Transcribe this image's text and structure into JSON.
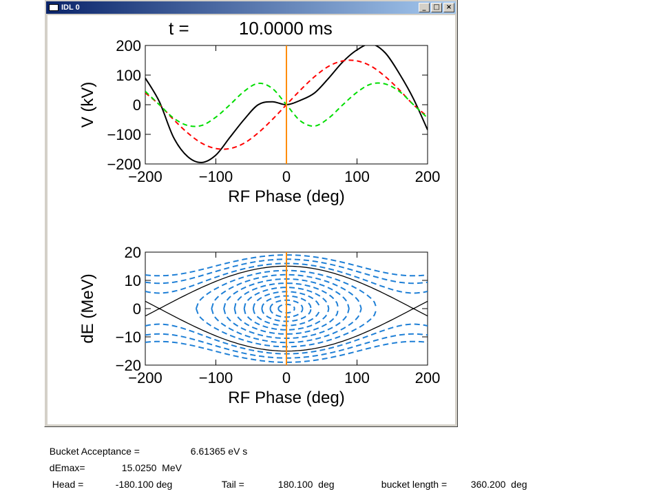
{
  "window": {
    "title": "IDL 0",
    "controls": {
      "minimize": "_",
      "maximize": "□",
      "close": "×"
    }
  },
  "plot_title": "t =          10.0000 ms",
  "info": {
    "acceptance_label": "Bucket Acceptance =",
    "acceptance_value": "6.61365 eV s",
    "demax_label": "dEmax=",
    "demax_value": "15.0250  MeV",
    "head_label": "Head =",
    "head_value": "-180.100 deg",
    "tail_label": "Tail =",
    "tail_value": "180.100  deg",
    "length_label": "bucket length =",
    "length_value": "360.200  deg"
  },
  "colors": {
    "line1": "#000000",
    "line2": "#ff0000",
    "line3": "#00dd00",
    "marker": "#ff8c00",
    "contours": "#1e7fd6",
    "separatrix": "#000000"
  },
  "chart_data": [
    {
      "type": "line",
      "xlabel": "RF Phase (deg)",
      "ylabel": "V (kV)",
      "xlim": [
        -200,
        200
      ],
      "ylim": [
        -200,
        200
      ],
      "xticks": [
        -200,
        -100,
        0,
        100,
        200
      ],
      "yticks": [
        -200,
        -100,
        0,
        100,
        200
      ],
      "vline_x": 0,
      "series": [
        {
          "color": "#000000",
          "style": "solid",
          "x": [
            -200,
            -180,
            -160,
            -140,
            -120,
            -100,
            -80,
            -60,
            -40,
            -20,
            0,
            20,
            40,
            60,
            80,
            100,
            120,
            140,
            160,
            180,
            200
          ],
          "y": [
            90,
            10,
            -110,
            -175,
            -195,
            -170,
            -110,
            -50,
            0,
            10,
            0,
            15,
            40,
            90,
            145,
            185,
            205,
            175,
            105,
            20,
            -85
          ]
        },
        {
          "color": "#ff0000",
          "style": "dashed",
          "x": [
            -200,
            -180,
            -160,
            -140,
            -120,
            -100,
            -80,
            -60,
            -40,
            -20,
            0,
            20,
            40,
            60,
            80,
            100,
            120,
            140,
            160,
            180,
            200
          ],
          "y": [
            40,
            0,
            -50,
            -95,
            -130,
            -148,
            -148,
            -130,
            -95,
            -50,
            0,
            50,
            95,
            130,
            148,
            148,
            130,
            95,
            50,
            0,
            -40
          ]
        },
        {
          "color": "#00dd00",
          "style": "dashed",
          "x": [
            -200,
            -180,
            -160,
            -140,
            -120,
            -100,
            -80,
            -60,
            -40,
            -20,
            0,
            20,
            40,
            60,
            80,
            100,
            120,
            140,
            160,
            180,
            200
          ],
          "y": [
            45,
            0,
            -45,
            -70,
            -70,
            -42,
            0,
            45,
            72,
            55,
            0,
            -55,
            -72,
            -45,
            0,
            42,
            70,
            70,
            45,
            0,
            -45
          ]
        }
      ]
    },
    {
      "type": "line",
      "xlabel": "RF Phase (deg)",
      "ylabel": "dE (MeV)",
      "xlim": [
        -200,
        200
      ],
      "ylim": [
        -20,
        20
      ],
      "xticks": [
        -200,
        -100,
        0,
        100,
        200
      ],
      "yticks": [
        -20,
        -10,
        0,
        10,
        20
      ],
      "vline_x": 0,
      "separatrix": {
        "dEmax": 15.025,
        "phi_half_width": 180.1
      },
      "contour_levels": [
        1.5,
        3,
        4.5,
        6,
        7.5,
        9,
        10.5,
        12,
        13.5,
        16,
        17.5,
        19
      ]
    }
  ]
}
